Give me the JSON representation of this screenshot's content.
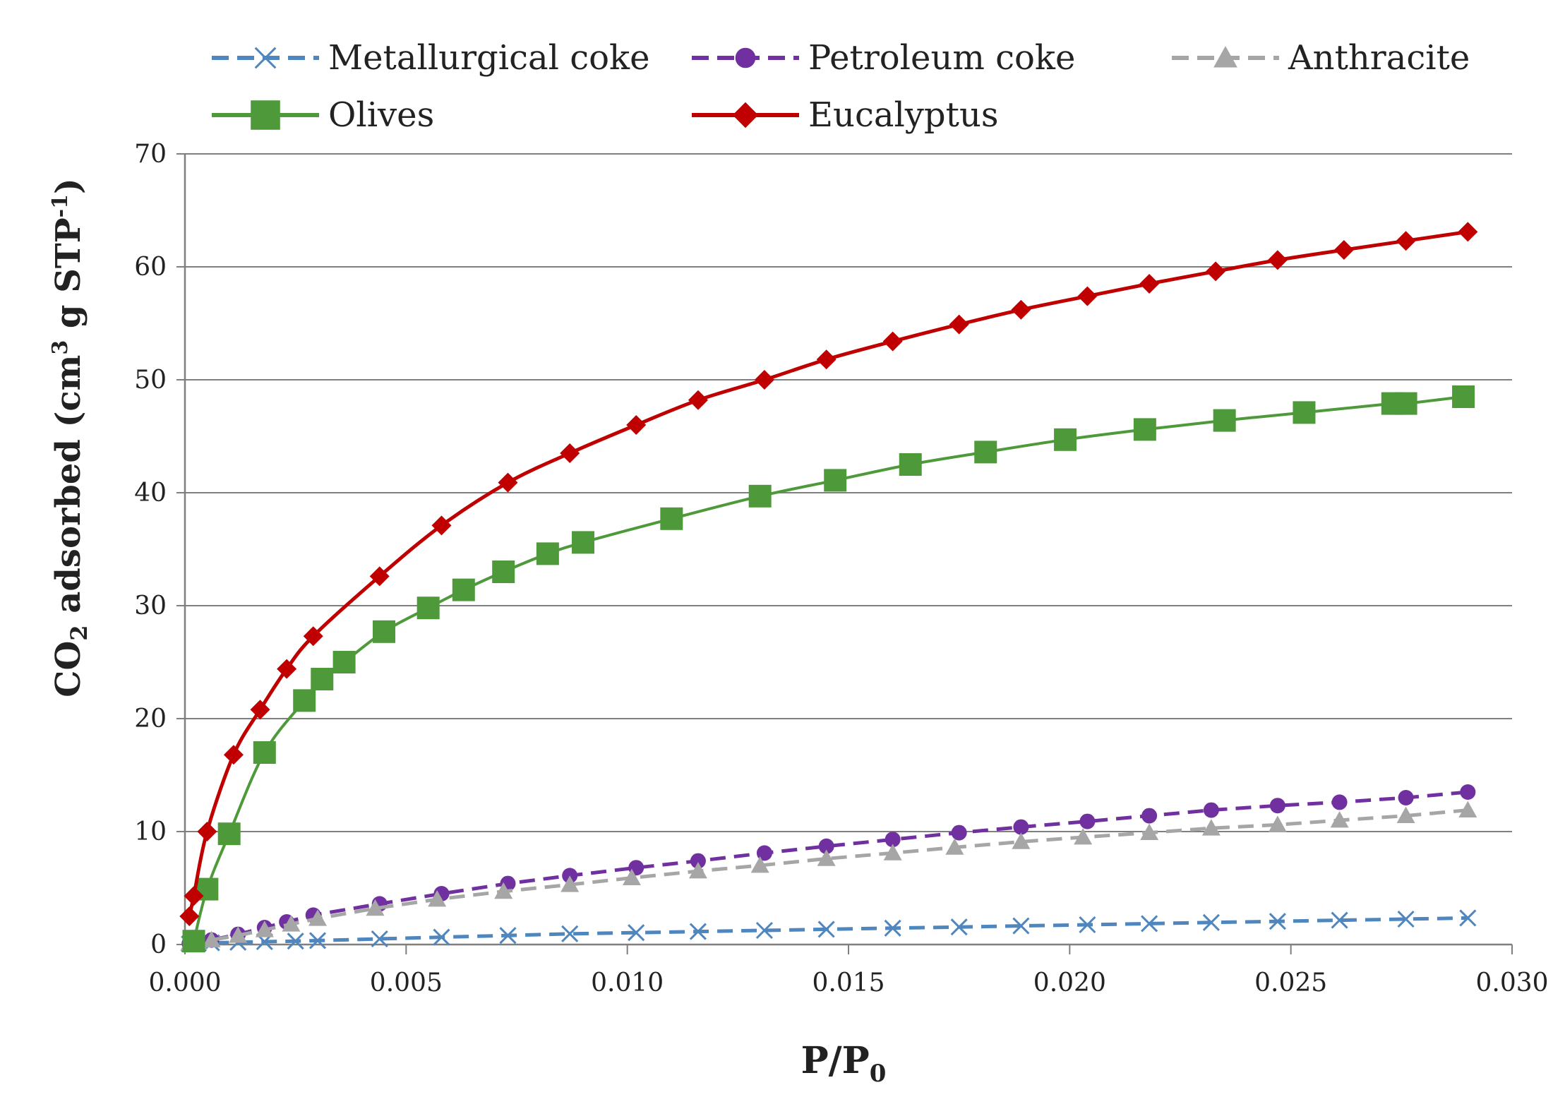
{
  "chart_data": {
    "type": "line",
    "title": "",
    "xlabel": {
      "main": "P/P",
      "sub": "0"
    },
    "ylabel": {
      "part1": "CO",
      "sub1": "2",
      "part2": "adsorbed (cm",
      "sup1": "3",
      "part3": "g STP",
      "sup2": "-1",
      "part4": ")"
    },
    "xlim": [
      0,
      0.03
    ],
    "ylim": [
      0,
      70
    ],
    "x_ticks": [
      "0.000",
      "0.005",
      "0.010",
      "0.015",
      "0.020",
      "0.025",
      "0.030"
    ],
    "y_ticks": [
      "0",
      "10",
      "20",
      "30",
      "40",
      "50",
      "60",
      "70"
    ],
    "grid": true,
    "legend_position": "top",
    "series": [
      {
        "name": "Metallurgical coke",
        "color": "#4f86bd",
        "marker": "x",
        "dashed": true,
        "x": [
          0.0001,
          0.0003,
          0.0006,
          0.0012,
          0.0018,
          0.0025,
          0.003,
          0.0044,
          0.0058,
          0.0073,
          0.0087,
          0.0102,
          0.0116,
          0.0131,
          0.0145,
          0.016,
          0.0175,
          0.0189,
          0.0204,
          0.0218,
          0.0232,
          0.0247,
          0.0261,
          0.0276,
          0.029
        ],
        "values": [
          0.05,
          0.1,
          0.15,
          0.2,
          0.25,
          0.3,
          0.35,
          0.5,
          0.65,
          0.8,
          0.95,
          1.05,
          1.15,
          1.25,
          1.35,
          1.45,
          1.55,
          1.65,
          1.75,
          1.85,
          1.95,
          2.05,
          2.15,
          2.25,
          2.35
        ]
      },
      {
        "name": "Petroleum coke",
        "color": "#7030a0",
        "marker": "circle",
        "dashed": true,
        "x": [
          0.0001,
          0.0003,
          0.0006,
          0.0012,
          0.0018,
          0.0023,
          0.0029,
          0.0044,
          0.0058,
          0.0073,
          0.0087,
          0.0102,
          0.0116,
          0.0131,
          0.0145,
          0.016,
          0.0175,
          0.0189,
          0.0204,
          0.0218,
          0.0232,
          0.0247,
          0.0261,
          0.0276,
          0.029
        ],
        "values": [
          0.1,
          0.2,
          0.4,
          0.9,
          1.5,
          2.0,
          2.6,
          3.6,
          4.5,
          5.4,
          6.1,
          6.8,
          7.4,
          8.1,
          8.7,
          9.3,
          9.9,
          10.4,
          10.9,
          11.4,
          11.9,
          12.3,
          12.6,
          13.0,
          13.5
        ]
      },
      {
        "name": "Anthracite",
        "color": "#a6a6a6",
        "marker": "triangle",
        "dashed": true,
        "x": [
          0.0001,
          0.0003,
          0.0006,
          0.0012,
          0.0018,
          0.0024,
          0.003,
          0.0043,
          0.0057,
          0.0072,
          0.0087,
          0.0101,
          0.0116,
          0.013,
          0.0145,
          0.016,
          0.0174,
          0.0189,
          0.0203,
          0.0218,
          0.0232,
          0.0247,
          0.0261,
          0.0276,
          0.029
        ],
        "values": [
          0.1,
          0.2,
          0.4,
          0.8,
          1.3,
          1.8,
          2.3,
          3.2,
          4.0,
          4.7,
          5.3,
          5.9,
          6.5,
          7.0,
          7.6,
          8.1,
          8.6,
          9.1,
          9.5,
          9.9,
          10.3,
          10.6,
          11.0,
          11.4,
          11.9
        ]
      },
      {
        "name": "Olives",
        "color": "#4e9a3a",
        "marker": "square",
        "dashed": false,
        "x": [
          0.0002,
          0.0005,
          0.001,
          0.0018,
          0.0027,
          0.0031,
          0.0036,
          0.0045,
          0.0055,
          0.0063,
          0.0072,
          0.0082,
          0.009,
          0.011,
          0.013,
          0.0147,
          0.0164,
          0.0181,
          0.0199,
          0.0217,
          0.0235,
          0.0253,
          0.0273,
          0.0276,
          0.0289
        ],
        "values": [
          0.3,
          4.9,
          9.8,
          17.0,
          21.6,
          23.5,
          25.0,
          27.7,
          29.8,
          31.4,
          33.0,
          34.6,
          35.6,
          37.7,
          39.7,
          41.1,
          42.5,
          43.6,
          44.7,
          45.6,
          46.4,
          47.1,
          47.9,
          47.9,
          48.5
        ]
      },
      {
        "name": "Eucalyptus",
        "color": "#c00000",
        "marker": "diamond",
        "dashed": false,
        "x": [
          0.0001,
          0.0002,
          0.0005,
          0.0011,
          0.0017,
          0.0023,
          0.0029,
          0.0044,
          0.0058,
          0.0073,
          0.0087,
          0.0102,
          0.0116,
          0.0131,
          0.0145,
          0.016,
          0.0175,
          0.0189,
          0.0204,
          0.0218,
          0.0233,
          0.0247,
          0.0262,
          0.0276,
          0.029
        ],
        "values": [
          2.5,
          4.3,
          10.0,
          16.8,
          20.8,
          24.4,
          27.3,
          32.6,
          37.1,
          40.9,
          43.5,
          46.0,
          48.2,
          50.0,
          51.8,
          53.4,
          54.9,
          56.2,
          57.4,
          58.5,
          59.6,
          60.6,
          61.5,
          62.3,
          63.1
        ]
      }
    ]
  }
}
